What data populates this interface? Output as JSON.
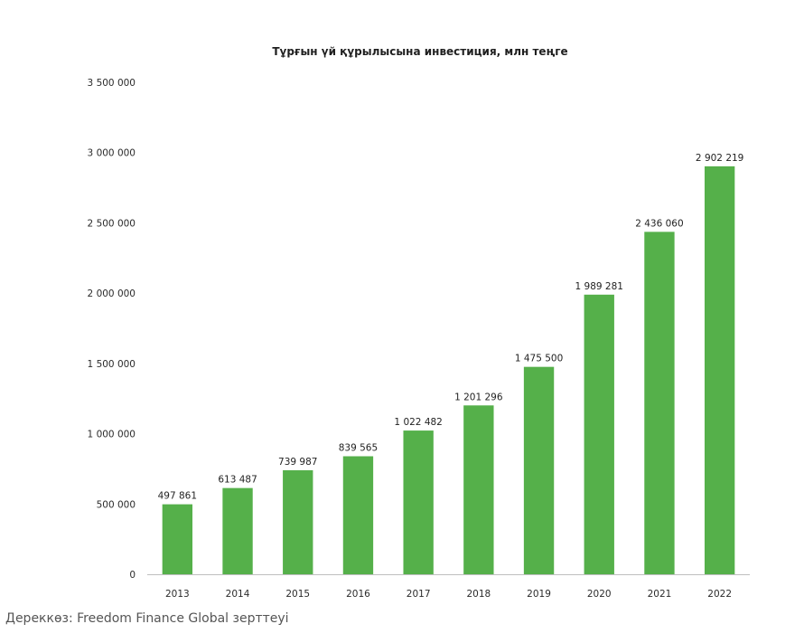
{
  "chart_data": {
    "type": "bar",
    "title": "Тұрғын үй құрылысына инвестиция, млн теңге",
    "xlabel": "",
    "ylabel": "",
    "categories": [
      "2013",
      "2014",
      "2015",
      "2016",
      "2017",
      "2018",
      "2019",
      "2020",
      "2021",
      "2022"
    ],
    "values": [
      497861,
      613487,
      739987,
      839565,
      1022482,
      1201296,
      1475500,
      1989281,
      2436060,
      2902219
    ],
    "value_labels": [
      "497 861",
      "613 487",
      "739 987",
      "839 565",
      "1 022 482",
      "1 201 296",
      "1 475 500",
      "1 989 281",
      "2 436 060",
      "2 902 219"
    ],
    "ylim": [
      0,
      3500000
    ],
    "yticks": [
      0,
      500000,
      1000000,
      1500000,
      2000000,
      2500000,
      3000000,
      3500000
    ],
    "ytick_labels": [
      "0",
      "500 000",
      "1 000 000",
      "1 500 000",
      "2 000 000",
      "2 500 000",
      "3 000 000",
      "3 500 000"
    ],
    "bar_color": "#55b04a",
    "axis_color": "#bfbfbf",
    "grid": false,
    "legend": false
  },
  "source_note": "Дереккөз: Freedom Finance Global зерттеуі"
}
